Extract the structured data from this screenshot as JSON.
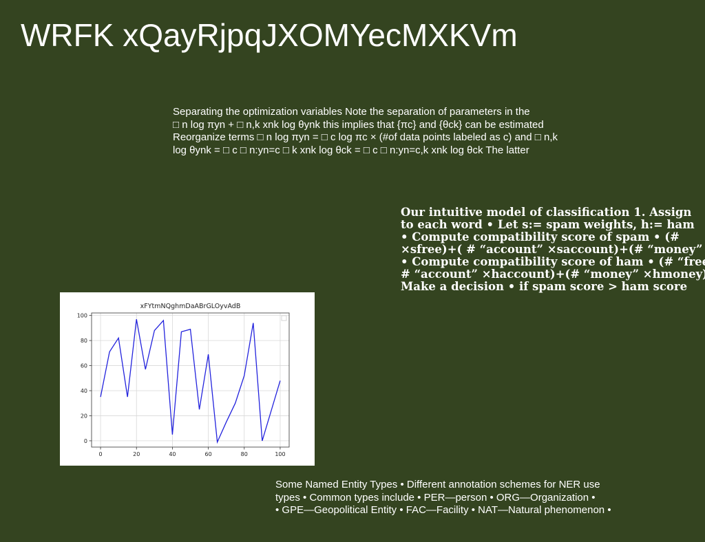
{
  "slide": {
    "title": "WRFK xQayRjpqJXOMYecMXKVm"
  },
  "text_blocks": [
    {
      "lines": [
        "Separating the optimization variables Note the separation of parameters in the",
        "□ n log πyn + □ n,k xnk log θynk this implies that {πc} and {θck} can be estimated",
        "Reorganize terms □ n log πyn = □ c log πc × (#of data points labeled as c) and □ n,k",
        "log θynk = □ c □ n:yn=c □ k xnk log θck = □ c □ n:yn=c,k xnk log θck The latter"
      ]
    },
    {
      "lines": [
        "Our intuitive model of classification 1. Assign",
        "to each word • Let s:= spam weights, h:= ham",
        "• Compute compatibility score of spam • (#",
        "×sfree)+( # “account” ×saccount)+(# “money”",
        "• Compute compatibility score of ham • (# “free”",
        "# “account” ×haccount)+(# “money” ×hmoney)",
        "Make a decision • if spam score > ham score"
      ]
    },
    {
      "lines": [
        "Some Named Entity Types • Different annotation schemes for NER use",
        "types • Common types include • PER—person • ORG—Organization •",
        "• GPE—Geopolitical Entity • FAC—Facility • NAT—Natural phenomenon •"
      ]
    }
  ],
  "chart_data": {
    "type": "line",
    "title": "xFYtmNQghmDaABrGLOyvAdB",
    "xlabel": "",
    "ylabel": "",
    "xlim": [
      -5,
      105
    ],
    "ylim": [
      -5,
      102
    ],
    "x_ticks": [
      0,
      20,
      40,
      60,
      80,
      100
    ],
    "y_ticks": [
      0,
      20,
      40,
      60,
      80,
      100
    ],
    "grid": true,
    "legend": "top-right",
    "line_color": "#2222dd",
    "series": [
      {
        "x": [
          0,
          5,
          10,
          15,
          20,
          25,
          30,
          35,
          40,
          45,
          50,
          55,
          60,
          65,
          70,
          75,
          80,
          85,
          90,
          95,
          100
        ],
        "values": [
          35,
          71,
          82,
          35,
          97,
          57,
          88,
          96,
          5,
          87,
          89,
          25,
          69,
          -1,
          15,
          30,
          52,
          94,
          0,
          24,
          48
        ]
      }
    ]
  }
}
